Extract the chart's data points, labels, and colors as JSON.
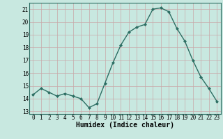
{
  "x": [
    0,
    1,
    2,
    3,
    4,
    5,
    6,
    7,
    8,
    9,
    10,
    11,
    12,
    13,
    14,
    15,
    16,
    17,
    18,
    19,
    20,
    21,
    22,
    23
  ],
  "y": [
    14.3,
    14.8,
    14.5,
    14.2,
    14.4,
    14.2,
    14.0,
    13.3,
    13.6,
    15.2,
    16.8,
    18.2,
    19.2,
    19.6,
    19.8,
    21.0,
    21.1,
    20.8,
    19.5,
    18.5,
    17.0,
    15.7,
    14.8,
    13.8
  ],
  "xlabel": "Humidex (Indice chaleur)",
  "ylim": [
    12.8,
    21.5
  ],
  "xlim": [
    -0.5,
    23.5
  ],
  "yticks": [
    13,
    14,
    15,
    16,
    17,
    18,
    19,
    20,
    21
  ],
  "xticks": [
    0,
    1,
    2,
    3,
    4,
    5,
    6,
    7,
    8,
    9,
    10,
    11,
    12,
    13,
    14,
    15,
    16,
    17,
    18,
    19,
    20,
    21,
    22,
    23
  ],
  "line_color": "#2d6e63",
  "marker": "D",
  "marker_size": 2.0,
  "bg_color": "#c8e8e0",
  "grid_color": "#b0d0cc",
  "tick_label_fontsize": 5.5,
  "xlabel_fontsize": 7.0,
  "line_width": 1.0
}
